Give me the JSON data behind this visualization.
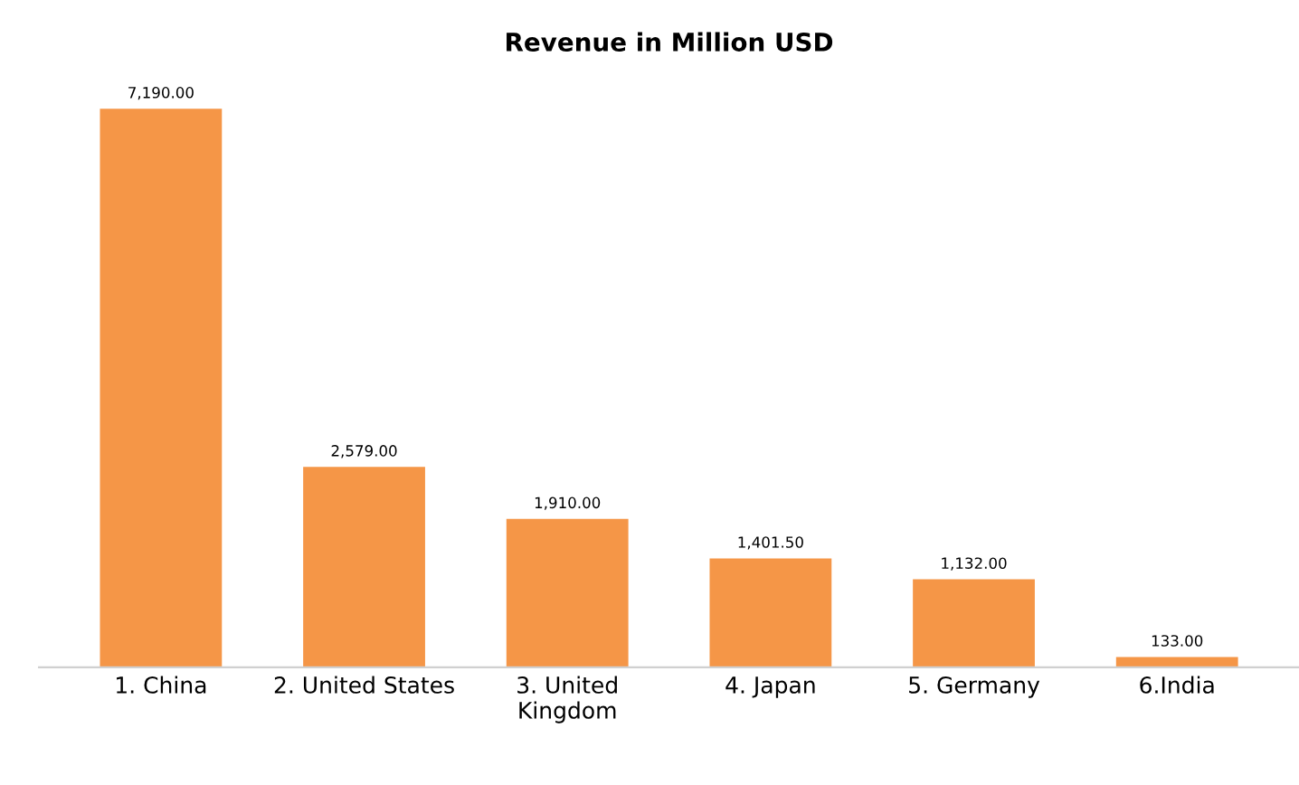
{
  "chart_data": {
    "type": "bar",
    "title": "Revenue in Million USD",
    "categories": [
      "1. China",
      "2. United States",
      "3. United\nKingdom",
      "4. Japan",
      "5. Germany",
      "6.India"
    ],
    "values": [
      7190,
      2579,
      1910,
      1401.5,
      1132,
      133
    ],
    "value_labels": [
      "7,190.00",
      "2,579.00",
      "1,910.00",
      "1,401.50",
      "1,132.00",
      "133.00"
    ],
    "color": "#f59647",
    "grid": false
  }
}
